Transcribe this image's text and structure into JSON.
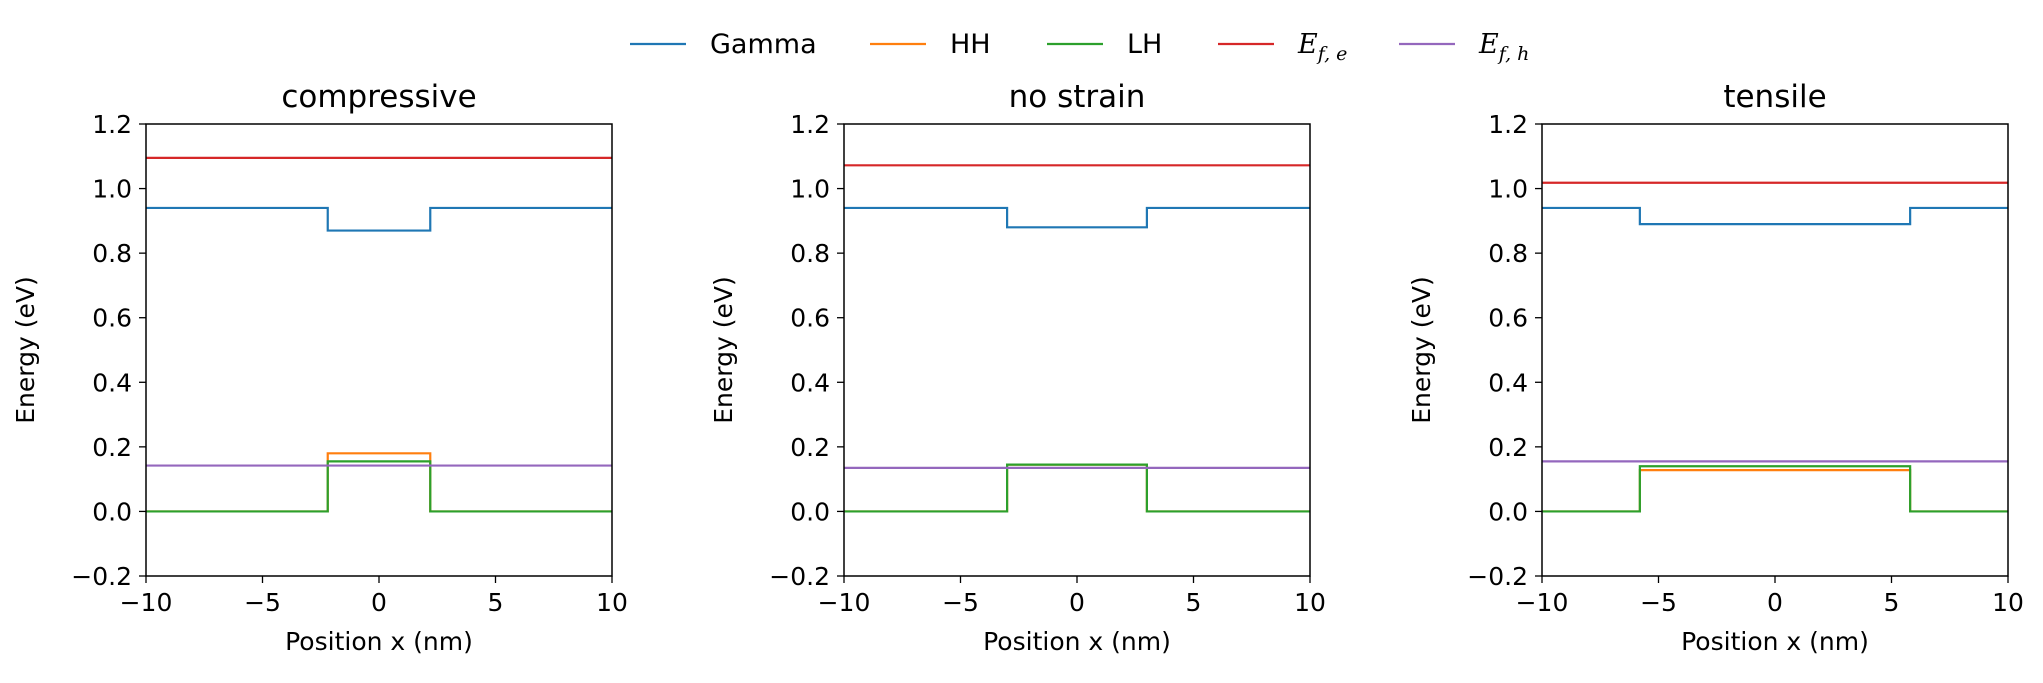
{
  "chart_data": [
    {
      "type": "line",
      "title": "compressive",
      "xlabel": "Position x (nm)",
      "ylabel": "Energy (eV)",
      "xlim": [
        -10,
        10
      ],
      "ylim": [
        -0.2,
        1.2
      ],
      "xticks": [
        "−10",
        "−5",
        "0",
        "5",
        "10"
      ],
      "yticks": [
        "−0.2",
        "0.0",
        "0.2",
        "0.4",
        "0.6",
        "0.8",
        "1.0",
        "1.2"
      ],
      "series": [
        {
          "key": "gamma",
          "name": "Gamma",
          "color": "#1f77b4",
          "x": [
            -10,
            -2.2,
            -2.2,
            2.2,
            2.2,
            10
          ],
          "y": [
            0.94,
            0.94,
            0.87,
            0.87,
            0.94,
            0.94
          ]
        },
        {
          "key": "hh",
          "name": "HH",
          "color": "#ff7f0e",
          "x": [
            -10,
            -2.2,
            -2.2,
            2.2,
            2.2,
            10
          ],
          "y": [
            0.0,
            0.0,
            0.18,
            0.18,
            0.0,
            0.0
          ]
        },
        {
          "key": "lh",
          "name": "LH",
          "color": "#2ca02c",
          "x": [
            -10,
            -2.2,
            -2.2,
            2.2,
            2.2,
            10
          ],
          "y": [
            0.0,
            0.0,
            0.155,
            0.155,
            0.0,
            0.0
          ]
        },
        {
          "key": "efe",
          "name": "E_{f,e}",
          "color": "#d62728",
          "x": [
            -10,
            10
          ],
          "y": [
            1.095,
            1.095
          ]
        },
        {
          "key": "efh",
          "name": "E_{f,h}",
          "color": "#9467bd",
          "x": [
            -10,
            10
          ],
          "y": [
            0.142,
            0.142
          ]
        }
      ]
    },
    {
      "type": "line",
      "title": "no strain",
      "xlabel": "Position x (nm)",
      "ylabel": "Energy (eV)",
      "xlim": [
        -10,
        10
      ],
      "ylim": [
        -0.2,
        1.2
      ],
      "xticks": [
        "−10",
        "−5",
        "0",
        "5",
        "10"
      ],
      "yticks": [
        "−0.2",
        "0.0",
        "0.2",
        "0.4",
        "0.6",
        "0.8",
        "1.0",
        "1.2"
      ],
      "series": [
        {
          "key": "gamma",
          "name": "Gamma",
          "color": "#1f77b4",
          "x": [
            -10,
            -3.0,
            -3.0,
            3.0,
            3.0,
            10
          ],
          "y": [
            0.94,
            0.94,
            0.88,
            0.88,
            0.94,
            0.94
          ]
        },
        {
          "key": "hh",
          "name": "HH",
          "color": "#ff7f0e",
          "x": [
            -10,
            -3.0,
            -3.0,
            3.0,
            3.0,
            10
          ],
          "y": [
            0.0,
            0.0,
            0.145,
            0.145,
            0.0,
            0.0
          ]
        },
        {
          "key": "lh",
          "name": "LH",
          "color": "#2ca02c",
          "x": [
            -10,
            -3.0,
            -3.0,
            3.0,
            3.0,
            10
          ],
          "y": [
            0.0,
            0.0,
            0.145,
            0.145,
            0.0,
            0.0
          ]
        },
        {
          "key": "efe",
          "name": "E_{f,e}",
          "color": "#d62728",
          "x": [
            -10,
            10
          ],
          "y": [
            1.072,
            1.072
          ]
        },
        {
          "key": "efh",
          "name": "E_{f,h}",
          "color": "#9467bd",
          "x": [
            -10,
            10
          ],
          "y": [
            0.135,
            0.135
          ]
        }
      ]
    },
    {
      "type": "line",
      "title": "tensile",
      "xlabel": "Position x (nm)",
      "ylabel": "Energy (eV)",
      "xlim": [
        -10,
        10
      ],
      "ylim": [
        -0.2,
        1.2
      ],
      "xticks": [
        "−10",
        "−5",
        "0",
        "5",
        "10"
      ],
      "yticks": [
        "−0.2",
        "0.0",
        "0.2",
        "0.4",
        "0.6",
        "0.8",
        "1.0",
        "1.2"
      ],
      "series": [
        {
          "key": "gamma",
          "name": "Gamma",
          "color": "#1f77b4",
          "x": [
            -10,
            -5.8,
            -5.8,
            5.8,
            5.8,
            10
          ],
          "y": [
            0.94,
            0.94,
            0.89,
            0.89,
            0.94,
            0.94
          ]
        },
        {
          "key": "hh",
          "name": "HH",
          "color": "#ff7f0e",
          "x": [
            -10,
            -5.8,
            -5.8,
            5.8,
            5.8,
            10
          ],
          "y": [
            0.0,
            0.0,
            0.128,
            0.128,
            0.0,
            0.0
          ]
        },
        {
          "key": "lh",
          "name": "LH",
          "color": "#2ca02c",
          "x": [
            -10,
            -5.8,
            -5.8,
            5.8,
            5.8,
            10
          ],
          "y": [
            0.0,
            0.0,
            0.14,
            0.14,
            0.0,
            0.0
          ]
        },
        {
          "key": "efe",
          "name": "E_{f,e}",
          "color": "#d62728",
          "x": [
            -10,
            10
          ],
          "y": [
            1.018,
            1.018
          ]
        },
        {
          "key": "efh",
          "name": "E_{f,h}",
          "color": "#9467bd",
          "x": [
            -10,
            10
          ],
          "y": [
            0.155,
            0.155
          ]
        }
      ]
    }
  ],
  "legend": {
    "placement": "top-center",
    "entries": [
      {
        "key": "gamma",
        "label": "Gamma",
        "color": "#1f77b4"
      },
      {
        "key": "hh",
        "label": "HH",
        "color": "#ff7f0e"
      },
      {
        "key": "lh",
        "label": "LH",
        "color": "#2ca02c"
      },
      {
        "key": "efe",
        "label_main": "E",
        "label_sub": "f, e",
        "color": "#d62728"
      },
      {
        "key": "efh",
        "label_main": "E",
        "label_sub": "f, h",
        "color": "#9467bd"
      }
    ]
  }
}
